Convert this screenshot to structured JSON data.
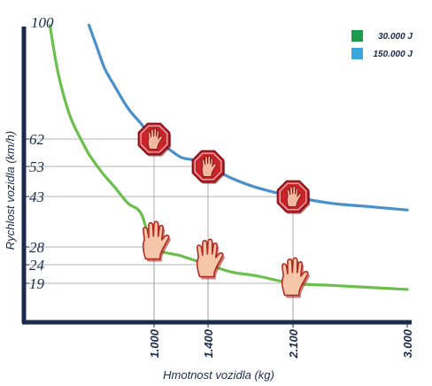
{
  "chart_data": {
    "type": "line",
    "xlabel": "Hmotnost vozidla (kg)",
    "ylabel": "Rychlost vozidla (km/h)",
    "xlim": [
      0,
      3000
    ],
    "ylim": [
      0,
      100
    ],
    "x_ticks": [
      {
        "value": 1000,
        "label": "1.000"
      },
      {
        "value": 1400,
        "label": "1.400"
      },
      {
        "value": 2100,
        "label": "2.100"
      },
      {
        "value": 3000,
        "label": "3.000"
      }
    ],
    "y_ticks": [
      {
        "value": 19,
        "label": "19"
      },
      {
        "value": 24,
        "label": "24"
      },
      {
        "value": 28,
        "label": "28"
      },
      {
        "value": 43,
        "label": "43"
      },
      {
        "value": 53,
        "label": "53"
      },
      {
        "value": 62,
        "label": "62"
      },
      {
        "value": 100,
        "label": "100"
      }
    ],
    "legend_position": "top-right",
    "series": [
      {
        "name": "30.000 J",
        "color": "#6cbf4c",
        "energy_joules": 30000,
        "x": [
          200,
          230,
          260,
          300,
          350,
          400,
          450,
          500,
          600,
          700,
          800,
          900,
          1000,
          1200,
          1400,
          1600,
          1800,
          2100,
          2400,
          2700,
          3000
        ],
        "y": [
          99,
          91,
          84,
          77,
          70,
          65,
          61,
          57,
          51,
          46,
          41,
          38,
          28,
          26,
          24,
          22,
          21,
          19,
          18,
          17,
          16
        ]
      },
      {
        "name": "150.000 J",
        "color": "#4a90c8",
        "energy_joules": 150000,
        "x": [
          500,
          560,
          620,
          700,
          800,
          900,
          1000,
          1100,
          1200,
          1300,
          1400,
          1600,
          1800,
          2100,
          2400,
          2700,
          3000
        ],
        "y": [
          99,
          92,
          85,
          79,
          72,
          67,
          62,
          59,
          56,
          55,
          53,
          49,
          46,
          43,
          41,
          40,
          39
        ]
      }
    ],
    "markers": [
      {
        "series": 1,
        "x": 1000,
        "y": 62,
        "icon": "stop-sign-hand-icon"
      },
      {
        "series": 1,
        "x": 1400,
        "y": 53,
        "icon": "stop-sign-hand-icon"
      },
      {
        "series": 1,
        "x": 2100,
        "y": 43,
        "icon": "stop-sign-hand-icon"
      },
      {
        "series": 0,
        "x": 1000,
        "y": 28,
        "icon": "raised-hand-icon"
      },
      {
        "series": 0,
        "x": 1400,
        "y": 24,
        "icon": "raised-hand-icon"
      },
      {
        "series": 0,
        "x": 2100,
        "y": 19,
        "icon": "raised-hand-icon"
      }
    ],
    "gridlines": "guide lines at marked points"
  }
}
